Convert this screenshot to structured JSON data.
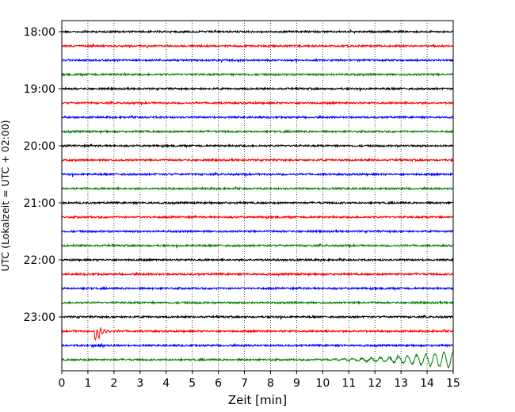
{
  "chart_data": {
    "type": "line",
    "title": "",
    "xlabel": "Zeit  [min]",
    "ylabel": "UTC (Lokalzeit = UTC + 02:00)",
    "xlim": [
      0,
      15
    ],
    "x_ticks": [
      "0",
      "1",
      "2",
      "3",
      "4",
      "5",
      "6",
      "7",
      "8",
      "9",
      "10",
      "11",
      "12",
      "13",
      "14",
      "15"
    ],
    "y_tick_labels": [
      "18:00",
      "19:00",
      "20:00",
      "21:00",
      "22:00",
      "23:00"
    ],
    "y_tick_rows": [
      0,
      4,
      8,
      12,
      16,
      20
    ],
    "grid": "vertical-dotted",
    "series_colors": [
      "#000000",
      "#ff0000",
      "#0000ff",
      "#008000"
    ],
    "rows": [
      {
        "start": "18:00",
        "color": "#000000"
      },
      {
        "start": "18:15",
        "color": "#ff0000"
      },
      {
        "start": "18:30",
        "color": "#0000ff"
      },
      {
        "start": "18:45",
        "color": "#008000"
      },
      {
        "start": "19:00",
        "color": "#000000"
      },
      {
        "start": "19:15",
        "color": "#ff0000"
      },
      {
        "start": "19:30",
        "color": "#0000ff"
      },
      {
        "start": "19:45",
        "color": "#008000"
      },
      {
        "start": "20:00",
        "color": "#000000"
      },
      {
        "start": "20:15",
        "color": "#ff0000"
      },
      {
        "start": "20:30",
        "color": "#0000ff"
      },
      {
        "start": "20:45",
        "color": "#008000"
      },
      {
        "start": "21:00",
        "color": "#000000"
      },
      {
        "start": "21:15",
        "color": "#ff0000"
      },
      {
        "start": "21:30",
        "color": "#0000ff"
      },
      {
        "start": "21:45",
        "color": "#008000"
      },
      {
        "start": "22:00",
        "color": "#000000"
      },
      {
        "start": "22:15",
        "color": "#ff0000"
      },
      {
        "start": "22:30",
        "color": "#0000ff"
      },
      {
        "start": "22:45",
        "color": "#008000"
      },
      {
        "start": "23:00",
        "color": "#000000"
      },
      {
        "start": "23:15",
        "color": "#ff0000"
      },
      {
        "start": "23:30",
        "color": "#0000ff"
      },
      {
        "start": "23:45",
        "color": "#008000"
      }
    ]
  }
}
